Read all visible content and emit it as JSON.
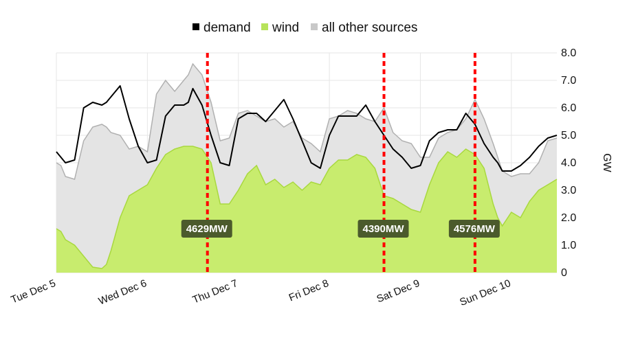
{
  "chart_data": {
    "type": "area",
    "legend": [
      {
        "name": "demand",
        "color": "#000000"
      },
      {
        "name": "wind",
        "color": "#b7e35a"
      },
      {
        "name": "all other sources",
        "color": "#c8c8c8"
      }
    ],
    "legend_position": "top-center",
    "ylabel": "GW",
    "yaxis_side": "right",
    "ylim": [
      0,
      8
    ],
    "yticks": [
      "0",
      "1.0",
      "2.0",
      "3.0",
      "4.0",
      "5.0",
      "6.0",
      "7.0",
      "8.0"
    ],
    "xlim": [
      0,
      5.5
    ],
    "xtick_labels": [
      "Tue Dec 5",
      "Wed Dec 6",
      "Thu Dec 7",
      "Fri Dec 8",
      "Sat Dec 9",
      "Sun Dec 10"
    ],
    "grid": true,
    "annotations": [
      {
        "x": 1.66,
        "label": "4629MW",
        "line_color": "#ff0000"
      },
      {
        "x": 3.6,
        "label": "4390MW",
        "line_color": "#ff0000"
      },
      {
        "x": 4.6,
        "label": "4576MW",
        "line_color": "#ff0000"
      }
    ],
    "series": [
      {
        "name": "wind",
        "x": [
          0,
          0.05,
          0.1,
          0.2,
          0.3,
          0.4,
          0.5,
          0.55,
          0.6,
          0.7,
          0.8,
          0.9,
          1.0,
          1.1,
          1.2,
          1.3,
          1.4,
          1.45,
          1.5,
          1.6,
          1.7,
          1.8,
          1.9,
          2.0,
          2.1,
          2.2,
          2.3,
          2.4,
          2.5,
          2.6,
          2.7,
          2.8,
          2.9,
          3.0,
          3.1,
          3.2,
          3.3,
          3.4,
          3.5,
          3.6,
          3.7,
          3.8,
          3.9,
          4.0,
          4.1,
          4.2,
          4.3,
          4.4,
          4.5,
          4.6,
          4.7,
          4.8,
          4.85,
          4.9,
          5.0,
          5.1,
          5.2,
          5.3,
          5.4,
          5.5
        ],
        "values": [
          1.6,
          1.5,
          1.2,
          1.0,
          0.6,
          0.2,
          0.15,
          0.3,
          0.8,
          2.0,
          2.8,
          3.0,
          3.2,
          3.8,
          4.3,
          4.5,
          4.6,
          4.6,
          4.6,
          4.5,
          4.0,
          2.5,
          2.5,
          3.0,
          3.6,
          3.9,
          3.2,
          3.4,
          3.1,
          3.3,
          3.0,
          3.3,
          3.2,
          3.8,
          4.1,
          4.1,
          4.3,
          4.2,
          3.8,
          2.8,
          2.7,
          2.5,
          2.3,
          2.2,
          3.2,
          4.0,
          4.4,
          4.2,
          4.5,
          4.3,
          3.8,
          2.5,
          2.0,
          1.7,
          2.2,
          2.0,
          2.6,
          3.0,
          3.2,
          3.4
        ]
      },
      {
        "name": "all other sources",
        "x": [
          0,
          0.05,
          0.1,
          0.2,
          0.3,
          0.4,
          0.5,
          0.55,
          0.6,
          0.7,
          0.8,
          0.9,
          1.0,
          1.1,
          1.2,
          1.3,
          1.4,
          1.45,
          1.5,
          1.6,
          1.7,
          1.8,
          1.9,
          2.0,
          2.1,
          2.2,
          2.3,
          2.4,
          2.5,
          2.6,
          2.7,
          2.8,
          2.9,
          3.0,
          3.1,
          3.2,
          3.3,
          3.4,
          3.5,
          3.6,
          3.7,
          3.8,
          3.9,
          4.0,
          4.1,
          4.2,
          4.3,
          4.4,
          4.5,
          4.6,
          4.7,
          4.8,
          4.85,
          4.9,
          5.0,
          5.1,
          5.2,
          5.3,
          5.4,
          5.5
        ],
        "values": [
          4.0,
          3.9,
          3.5,
          3.4,
          4.8,
          5.3,
          5.4,
          5.3,
          5.1,
          5.0,
          4.5,
          4.6,
          4.4,
          6.5,
          7.0,
          6.6,
          7.0,
          7.2,
          7.6,
          7.2,
          6.2,
          4.8,
          4.9,
          5.8,
          5.9,
          5.7,
          5.5,
          5.6,
          5.3,
          5.5,
          4.9,
          4.7,
          4.4,
          5.6,
          5.7,
          5.9,
          5.8,
          5.6,
          5.5,
          6.0,
          5.1,
          4.8,
          4.7,
          4.2,
          4.2,
          4.9,
          5.1,
          5.2,
          5.6,
          6.3,
          5.6,
          4.7,
          4.2,
          3.7,
          3.5,
          3.6,
          3.6,
          4.0,
          4.8,
          4.9
        ]
      },
      {
        "name": "demand",
        "x": [
          0,
          0.05,
          0.1,
          0.2,
          0.3,
          0.4,
          0.5,
          0.55,
          0.6,
          0.7,
          0.8,
          0.9,
          1.0,
          1.1,
          1.2,
          1.3,
          1.4,
          1.45,
          1.5,
          1.6,
          1.7,
          1.8,
          1.9,
          2.0,
          2.1,
          2.2,
          2.3,
          2.4,
          2.5,
          2.6,
          2.7,
          2.8,
          2.9,
          3.0,
          3.1,
          3.2,
          3.3,
          3.4,
          3.5,
          3.6,
          3.7,
          3.8,
          3.9,
          4.0,
          4.1,
          4.2,
          4.3,
          4.4,
          4.5,
          4.6,
          4.7,
          4.8,
          4.85,
          4.9,
          5.0,
          5.1,
          5.2,
          5.3,
          5.4,
          5.5
        ],
        "values": [
          4.4,
          4.2,
          4.0,
          4.1,
          6.0,
          6.2,
          6.1,
          6.2,
          6.4,
          6.8,
          5.6,
          4.6,
          4.0,
          4.1,
          5.7,
          6.1,
          6.1,
          6.2,
          6.7,
          6.1,
          5.0,
          4.0,
          3.9,
          5.6,
          5.8,
          5.8,
          5.5,
          5.9,
          6.3,
          5.6,
          4.8,
          4.0,
          3.8,
          5.0,
          5.7,
          5.7,
          5.7,
          6.1,
          5.5,
          5.0,
          4.5,
          4.2,
          3.8,
          3.9,
          4.8,
          5.1,
          5.2,
          5.2,
          5.8,
          5.4,
          4.7,
          4.2,
          4.0,
          3.7,
          3.7,
          3.9,
          4.2,
          4.6,
          4.9,
          5.0
        ]
      }
    ]
  }
}
